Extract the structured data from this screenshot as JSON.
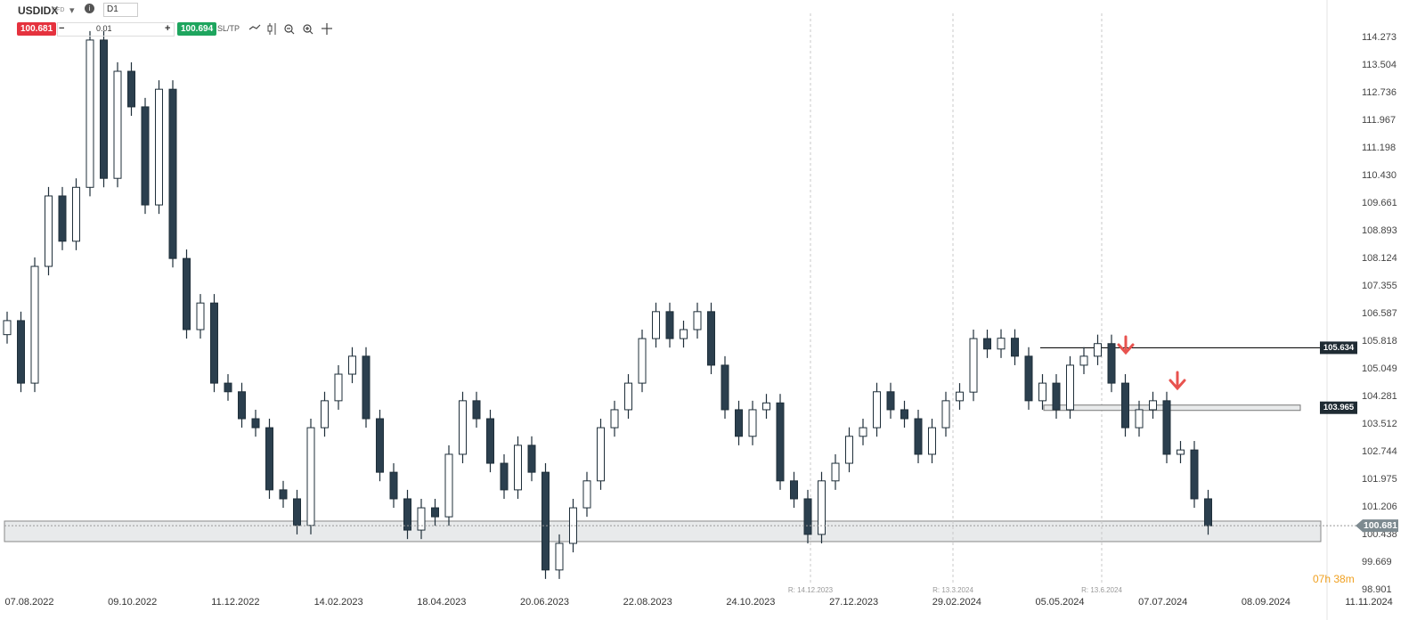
{
  "toolbar": {
    "symbol": "USDIDX",
    "instrument_type": "CFD",
    "timeframe": "D1",
    "sell": "100.681",
    "lot": "0.01",
    "buy": "100.694",
    "sltp": "SL/TP",
    "minus": "−",
    "plus": "+"
  },
  "chart_data": {
    "type": "candlestick",
    "x_labels": [
      "07.08.2022",
      "09.10.2022",
      "11.12.2022",
      "14.02.2023",
      "18.04.2023",
      "20.06.2023",
      "22.08.2023",
      "24.10.2023",
      "27.12.2023",
      "29.02.2024",
      "05.05.2024",
      "07.07.2024",
      "08.09.2024",
      "11.11.2024"
    ],
    "open": [
      106.0,
      106.39,
      104.65,
      107.9,
      109.86,
      108.6,
      110.1,
      114.2,
      110.35,
      113.33,
      112.34,
      109.61,
      112.83,
      108.12,
      106.14,
      106.88,
      104.65,
      104.41,
      103.66,
      103.41,
      101.68,
      101.43,
      100.69,
      103.41,
      104.16,
      104.9,
      105.4,
      103.66,
      102.17,
      101.43,
      100.56,
      101.18,
      100.93,
      102.67,
      104.16,
      103.66,
      102.42,
      101.68,
      102.92,
      102.17,
      99.45,
      100.19,
      101.18,
      101.93,
      103.41,
      103.91,
      104.65,
      105.89,
      106.64,
      105.89,
      106.14,
      106.64,
      105.15,
      103.91,
      103.17,
      103.91,
      104.1,
      101.93,
      101.43,
      100.44,
      101.93,
      102.42,
      103.17,
      103.41,
      104.41,
      103.91,
      103.66,
      102.67,
      103.41,
      104.16,
      104.4,
      105.89,
      105.6,
      105.9,
      105.4,
      104.16,
      104.65,
      103.91,
      105.15,
      105.4,
      105.75,
      104.65,
      103.41,
      103.91,
      104.16,
      102.67,
      102.79,
      101.43
    ],
    "high": [
      106.64,
      106.64,
      108.15,
      110.11,
      110.11,
      110.35,
      114.45,
      114.45,
      113.58,
      113.58,
      112.59,
      113.08,
      113.08,
      108.37,
      107.13,
      107.13,
      104.9,
      104.66,
      103.91,
      103.66,
      101.93,
      101.68,
      103.66,
      104.41,
      105.15,
      105.65,
      105.65,
      103.91,
      102.42,
      101.68,
      101.43,
      101.43,
      102.92,
      104.41,
      104.41,
      103.91,
      102.67,
      103.17,
      103.17,
      102.42,
      100.44,
      101.43,
      102.18,
      103.66,
      104.16,
      104.9,
      106.14,
      106.89,
      106.89,
      106.39,
      106.89,
      106.89,
      105.4,
      104.16,
      104.16,
      104.35,
      104.35,
      102.18,
      101.68,
      102.18,
      102.67,
      103.42,
      103.66,
      104.66,
      104.66,
      104.16,
      103.91,
      103.66,
      104.41,
      104.65,
      106.14,
      106.14,
      106.15,
      106.15,
      105.65,
      104.9,
      104.9,
      105.4,
      105.65,
      106.0,
      106.0,
      104.9,
      104.16,
      104.41,
      104.41,
      103.04,
      103.04,
      101.68
    ],
    "low": [
      105.75,
      104.4,
      104.4,
      107.65,
      108.35,
      108.35,
      109.85,
      110.1,
      110.1,
      112.09,
      109.36,
      109.36,
      107.87,
      105.89,
      105.89,
      104.4,
      104.16,
      103.41,
      103.16,
      101.43,
      101.18,
      100.44,
      100.44,
      103.16,
      103.91,
      104.65,
      103.41,
      101.92,
      101.18,
      100.31,
      100.31,
      100.68,
      100.68,
      102.42,
      103.41,
      102.17,
      101.43,
      101.43,
      101.92,
      99.2,
      99.2,
      99.94,
      100.93,
      101.68,
      103.16,
      103.66,
      104.4,
      105.64,
      105.64,
      105.64,
      105.89,
      104.9,
      103.66,
      102.92,
      102.92,
      103.66,
      101.68,
      101.18,
      100.19,
      100.19,
      101.68,
      102.17,
      102.92,
      103.16,
      103.66,
      103.41,
      102.42,
      102.42,
      103.16,
      103.91,
      104.15,
      105.35,
      105.35,
      105.15,
      103.91,
      103.91,
      103.66,
      103.66,
      104.9,
      105.15,
      104.4,
      103.16,
      103.16,
      103.66,
      102.42,
      102.42,
      101.18,
      100.431
    ],
    "close": [
      106.39,
      104.65,
      107.9,
      109.86,
      108.6,
      110.1,
      114.2,
      110.35,
      113.33,
      112.34,
      109.61,
      112.83,
      108.12,
      106.14,
      106.88,
      104.65,
      104.41,
      103.66,
      103.41,
      101.68,
      101.43,
      100.69,
      103.41,
      104.16,
      104.9,
      105.4,
      103.66,
      102.17,
      101.43,
      100.56,
      101.18,
      100.93,
      102.67,
      104.16,
      103.66,
      102.42,
      101.68,
      102.92,
      102.17,
      99.45,
      100.19,
      101.18,
      101.93,
      103.41,
      103.91,
      104.65,
      105.89,
      106.64,
      105.89,
      106.14,
      106.64,
      105.15,
      103.91,
      103.17,
      103.91,
      104.1,
      101.93,
      101.43,
      100.44,
      101.93,
      102.42,
      103.17,
      103.41,
      104.41,
      103.91,
      103.66,
      102.67,
      103.41,
      104.16,
      104.4,
      105.89,
      105.6,
      105.9,
      105.4,
      104.16,
      104.65,
      103.91,
      105.15,
      105.4,
      105.75,
      104.65,
      103.41,
      103.91,
      104.16,
      102.67,
      102.79,
      101.43,
      100.681
    ],
    "up_color": "#ffffff",
    "down_color": "#2b3f4e",
    "ylim": [
      98.826,
      115.066
    ],
    "yticks": [
      114.273,
      113.504,
      112.736,
      111.967,
      111.198,
      {
        "value": 110.43,
        "label": "110.430"
      },
      109.661,
      108.893,
      108.124,
      107.355,
      106.587,
      105.818,
      105.049,
      104.281,
      103.512,
      102.744,
      101.975,
      101.206,
      100.438,
      99.669,
      98.901
    ],
    "levels": [
      105.634,
      103.965
    ],
    "zone": [
      100.24,
      100.81
    ],
    "current_price": 100.681,
    "rollovers": [
      "R: 14.12.2023",
      "R: 13.3.2024",
      "R: 13.6.2024"
    ],
    "timer": "07h 38m"
  }
}
